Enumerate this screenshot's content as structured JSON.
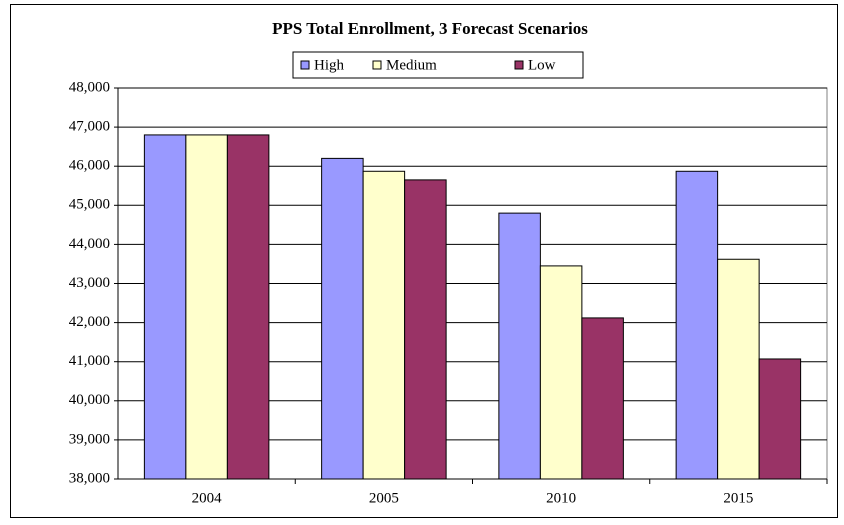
{
  "chart_data": {
    "type": "bar",
    "title": "PPS Total Enrollment, 3 Forecast Scenarios",
    "categories": [
      "2004",
      "2005",
      "2010",
      "2015"
    ],
    "series": [
      {
        "name": "High",
        "color": "#9999ff",
        "values": [
          46800,
          46200,
          44800,
          45870
        ]
      },
      {
        "name": "Medium",
        "color": "#ffffcc",
        "values": [
          46800,
          45870,
          43450,
          43620
        ]
      },
      {
        "name": "Low",
        "color": "#993366",
        "values": [
          46800,
          45650,
          42120,
          41070
        ]
      }
    ],
    "ylim": [
      38000,
      48000
    ],
    "yticks": [
      {
        "value": 38000,
        "label": "38,000"
      },
      {
        "value": 39000,
        "label": "39,000"
      },
      {
        "value": 40000,
        "label": "40,000"
      },
      {
        "value": 41000,
        "label": "41,000"
      },
      {
        "value": 42000,
        "label": "42,000"
      },
      {
        "value": 43000,
        "label": "43,000"
      },
      {
        "value": 44000,
        "label": "44,000"
      },
      {
        "value": 45000,
        "label": "45,000"
      },
      {
        "value": 46000,
        "label": "46,000"
      },
      {
        "value": 47000,
        "label": "47,000"
      },
      {
        "value": 48000,
        "label": "48,000"
      }
    ],
    "grid": true,
    "legend": "top"
  }
}
